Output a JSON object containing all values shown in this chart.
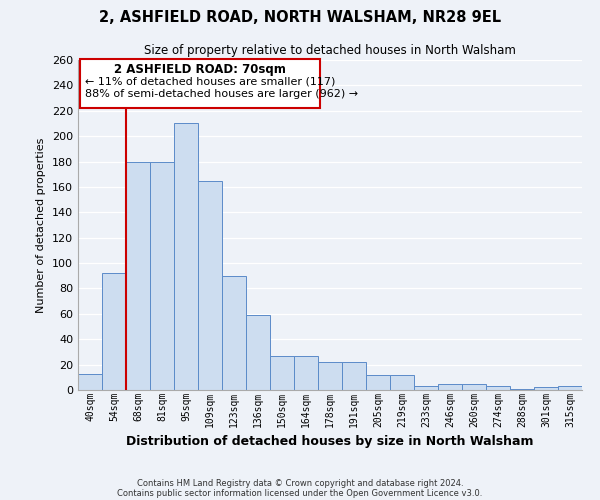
{
  "title": "2, ASHFIELD ROAD, NORTH WALSHAM, NR28 9EL",
  "subtitle": "Size of property relative to detached houses in North Walsham",
  "xlabel": "Distribution of detached houses by size in North Walsham",
  "ylabel": "Number of detached properties",
  "bin_labels": [
    "40sqm",
    "54sqm",
    "68sqm",
    "81sqm",
    "95sqm",
    "109sqm",
    "123sqm",
    "136sqm",
    "150sqm",
    "164sqm",
    "178sqm",
    "191sqm",
    "205sqm",
    "219sqm",
    "233sqm",
    "246sqm",
    "260sqm",
    "274sqm",
    "288sqm",
    "301sqm",
    "315sqm"
  ],
  "bar_heights": [
    13,
    92,
    180,
    180,
    210,
    165,
    90,
    59,
    27,
    27,
    22,
    22,
    12,
    12,
    3,
    5,
    5,
    3,
    1,
    2,
    3
  ],
  "bar_color": "#cdddf0",
  "bar_edge_color": "#5b8bc9",
  "vline_x_index": 2,
  "vline_color": "#cc0000",
  "ylim": [
    0,
    260
  ],
  "yticks": [
    0,
    20,
    40,
    60,
    80,
    100,
    120,
    140,
    160,
    180,
    200,
    220,
    240,
    260
  ],
  "annotation_title": "2 ASHFIELD ROAD: 70sqm",
  "annotation_line1": "← 11% of detached houses are smaller (117)",
  "annotation_line2": "88% of semi-detached houses are larger (962) →",
  "annotation_box_color": "#ffffff",
  "annotation_box_edge": "#cc0000",
  "footer1": "Contains HM Land Registry data © Crown copyright and database right 2024.",
  "footer2": "Contains public sector information licensed under the Open Government Licence v3.0.",
  "background_color": "#eef2f8",
  "plot_bg_color": "#eef2f8",
  "grid_color": "#ffffff"
}
